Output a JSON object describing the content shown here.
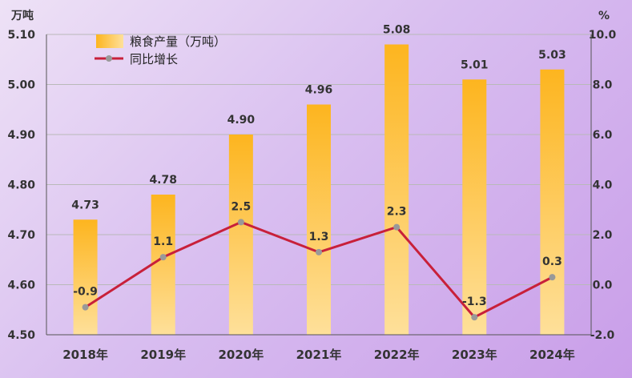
{
  "chart_data": {
    "type": "bar",
    "categories": [
      "2018年",
      "2019年",
      "2020年",
      "2021年",
      "2022年",
      "2023年",
      "2024年"
    ],
    "series": [
      {
        "name": "粮食产量（万吨）",
        "type": "bar",
        "axis": "left",
        "values": [
          4.73,
          4.78,
          4.9,
          4.96,
          5.08,
          5.01,
          5.03
        ],
        "labels": [
          "4.73",
          "4.78",
          "4.90",
          "4.96",
          "5.08",
          "5.01",
          "5.03"
        ],
        "color": "#fdb92e"
      },
      {
        "name": "同比增长",
        "type": "line",
        "axis": "right",
        "values": [
          -0.9,
          1.1,
          2.5,
          1.3,
          2.3,
          -1.3,
          0.3
        ],
        "labels": [
          "-0.9",
          "1.1",
          "2.5",
          "1.3",
          "2.3",
          "-1.3",
          "0.3"
        ],
        "color": "#c8203a",
        "marker_color": "#999999"
      }
    ],
    "y_left": {
      "unit": "万吨",
      "range": [
        4.5,
        5.1
      ],
      "ticks": [
        "4.50",
        "4.60",
        "4.70",
        "4.80",
        "4.90",
        "5.00",
        "5.10"
      ]
    },
    "y_right": {
      "unit": "%",
      "range": [
        -2.0,
        10.0
      ],
      "ticks": [
        "-2.0",
        "0.0",
        "2.0",
        "4.0",
        "6.0",
        "8.0",
        "10.0"
      ]
    },
    "grid": true,
    "legend_position": "top-left"
  }
}
